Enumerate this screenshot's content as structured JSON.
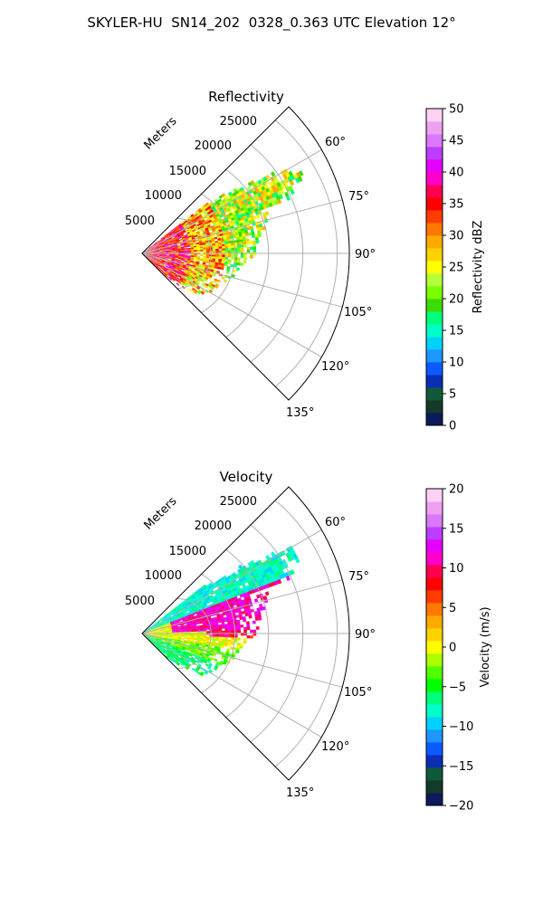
{
  "title": "SKYLER-HU  SN14_202  0328_0.363 UTC Elevation 12°",
  "palettes": {
    "reflectivity": [
      "#0a1a5c",
      "#143a28",
      "#0f5a3c",
      "#0a2fb4",
      "#0a5aff",
      "#1e96ff",
      "#00d2ff",
      "#00ffc8",
      "#00ff7a",
      "#3cdc00",
      "#7aff00",
      "#b4ff3c",
      "#ffff00",
      "#ffd200",
      "#ffaa00",
      "#ff7800",
      "#ff3c00",
      "#ff0000",
      "#ff0050",
      "#ff00c8",
      "#e600ff",
      "#be3cff",
      "#dc78ff",
      "#f0a0f0",
      "#ffd2f5"
    ],
    "velocity": [
      "#0a1a5c",
      "#143a28",
      "#0f5a3c",
      "#0a2fb4",
      "#0a5aff",
      "#1e96ff",
      "#00d2ff",
      "#00ffc8",
      "#00ff7a",
      "#00ff00",
      "#50ff00",
      "#aaff00",
      "#ffff00",
      "#ffd200",
      "#ffaa00",
      "#ff7800",
      "#ff3c00",
      "#ff0000",
      "#ff0050",
      "#ff00c8",
      "#e600ff",
      "#be3cff",
      "#dc78ff",
      "#f0a0f0",
      "#ffd2f5"
    ]
  },
  "chart_data": [
    {
      "type": "heatmap",
      "projection": "polar sector",
      "title": "Reflectivity",
      "radial_label": "Meters",
      "radial_ticks": [
        "5000",
        "10000",
        "15000",
        "20000",
        "25000"
      ],
      "angle_ticks": [
        "60°",
        "75°",
        "90°",
        "105°",
        "120°",
        "135°"
      ],
      "colorbar_label": "Reflectivity dBZ",
      "colorbar_ticks": [
        "0",
        "5",
        "10",
        "15",
        "20",
        "25",
        "30",
        "35",
        "40",
        "45",
        "50"
      ],
      "clim": [
        0,
        50
      ],
      "angle_range_deg": [
        45,
        135
      ],
      "radial_range_m": [
        0,
        30000
      ],
      "grid": true
    },
    {
      "type": "heatmap",
      "projection": "polar sector",
      "title": "Velocity",
      "radial_label": "Meters",
      "radial_ticks": [
        "5000",
        "10000",
        "15000",
        "20000",
        "25000"
      ],
      "angle_ticks": [
        "60°",
        "75°",
        "90°",
        "105°",
        "120°",
        "135°"
      ],
      "colorbar_label": "Velocity (m/s)",
      "colorbar_ticks": [
        "20",
        "15",
        "10",
        "5",
        "0",
        "−5",
        "−10",
        "−15",
        "−20"
      ],
      "clim": [
        -20,
        20
      ],
      "angle_range_deg": [
        45,
        135
      ],
      "radial_range_m": [
        0,
        30000
      ],
      "grid": true
    }
  ]
}
